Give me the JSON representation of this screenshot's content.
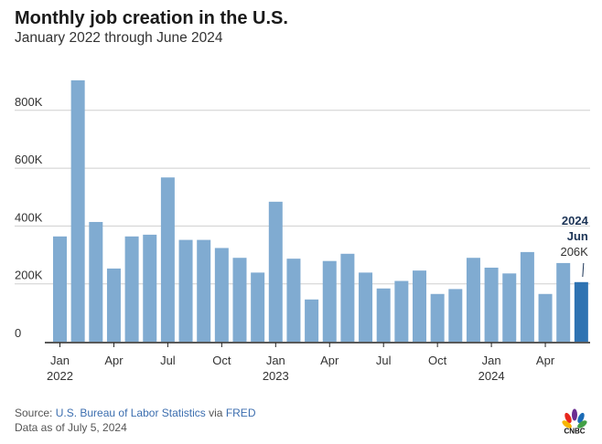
{
  "header": {
    "title": "Monthly job creation in the U.S.",
    "subtitle": "January 2022 through June 2024"
  },
  "chart_data": {
    "type": "bar",
    "title": "Monthly job creation in the U.S.",
    "subtitle": "January 2022 through June 2024",
    "xlabel": "",
    "ylabel": "",
    "ylim": [
      0,
      900
    ],
    "y_ticks": [
      0,
      200,
      400,
      600,
      800
    ],
    "y_tick_labels": [
      "0",
      "200K",
      "400K",
      "600K",
      "800K"
    ],
    "grid": true,
    "unit": "thousands of jobs",
    "categories": [
      "Jan 2022",
      "Feb 2022",
      "Mar 2022",
      "Apr 2022",
      "May 2022",
      "Jun 2022",
      "Jul 2022",
      "Aug 2022",
      "Sep 2022",
      "Oct 2022",
      "Nov 2022",
      "Dec 2022",
      "Jan 2023",
      "Feb 2023",
      "Mar 2023",
      "Apr 2023",
      "May 2023",
      "Jun 2023",
      "Jul 2023",
      "Aug 2023",
      "Sep 2023",
      "Oct 2023",
      "Nov 2023",
      "Dec 2023",
      "Jan 2024",
      "Feb 2024",
      "Mar 2024",
      "Apr 2024",
      "May 2024",
      "Jun 2024"
    ],
    "values": [
      364,
      904,
      414,
      253,
      364,
      370,
      568,
      352,
      352,
      324,
      290,
      239,
      484,
      287,
      146,
      279,
      304,
      239,
      184,
      210,
      246,
      165,
      182,
      290,
      256,
      236,
      310,
      165,
      272,
      206
    ],
    "highlight_index": 29,
    "x_ticks": [
      {
        "index": 0,
        "label": "Jan",
        "year": "2022"
      },
      {
        "index": 3,
        "label": "Apr",
        "year": ""
      },
      {
        "index": 6,
        "label": "Jul",
        "year": ""
      },
      {
        "index": 9,
        "label": "Oct",
        "year": ""
      },
      {
        "index": 12,
        "label": "Jan",
        "year": "2023"
      },
      {
        "index": 15,
        "label": "Apr",
        "year": ""
      },
      {
        "index": 18,
        "label": "Jul",
        "year": ""
      },
      {
        "index": 21,
        "label": "Oct",
        "year": ""
      },
      {
        "index": 24,
        "label": "Jan",
        "year": "2024"
      },
      {
        "index": 27,
        "label": "Apr",
        "year": ""
      }
    ],
    "annotation": {
      "year": "2024",
      "month": "Jun",
      "value": "206K"
    },
    "colors": {
      "bar": "#80abd1",
      "highlight": "#2f73b2",
      "grid": "#cfcfcf"
    }
  },
  "footer": {
    "source_prefix": "Source: ",
    "source_link": "U.S. Bureau of Labor Statistics",
    "source_via": " via ",
    "source_link2": "FRED",
    "data_as_of": "Data as of July 5, 2024"
  },
  "logo": {
    "text": "CNBC",
    "icon": "cnbc-peacock-icon"
  }
}
